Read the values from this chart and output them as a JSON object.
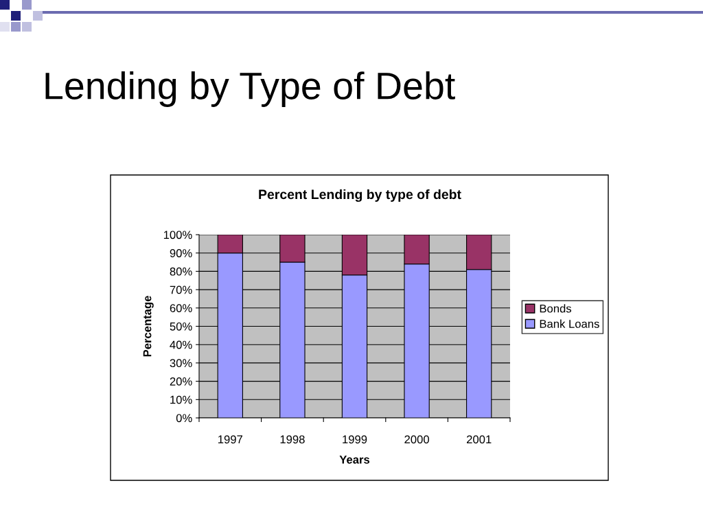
{
  "chart_data": {
    "type": "bar",
    "title": "Lending by Type of Debt",
    "subtitle": "Percent Lending by type of debt",
    "xlabel": "Years",
    "ylabel": "Percentage",
    "categories": [
      "1997",
      "1998",
      "1999",
      "2000",
      "2001"
    ],
    "series": [
      {
        "name": "Bank Loans",
        "color": "#9999ff",
        "values": [
          90,
          85,
          78,
          84,
          81
        ]
      },
      {
        "name": "Bonds",
        "color": "#993366",
        "values": [
          10,
          15,
          22,
          16,
          19
        ]
      }
    ],
    "stacked": true,
    "ylim": [
      0,
      100
    ],
    "yticks": [
      {
        "value": 0,
        "label": "0%"
      },
      {
        "value": 10,
        "label": "10%"
      },
      {
        "value": 20,
        "label": "20%"
      },
      {
        "value": 30,
        "label": "30%"
      },
      {
        "value": 40,
        "label": "40%"
      },
      {
        "value": 50,
        "label": "50%"
      },
      {
        "value": 60,
        "label": "60%"
      },
      {
        "value": 70,
        "label": "70%"
      },
      {
        "value": 80,
        "label": "80%"
      },
      {
        "value": 90,
        "label": "90%"
      },
      {
        "value": 100,
        "label": "100%"
      }
    ],
    "grid": "y",
    "legend": "right"
  }
}
